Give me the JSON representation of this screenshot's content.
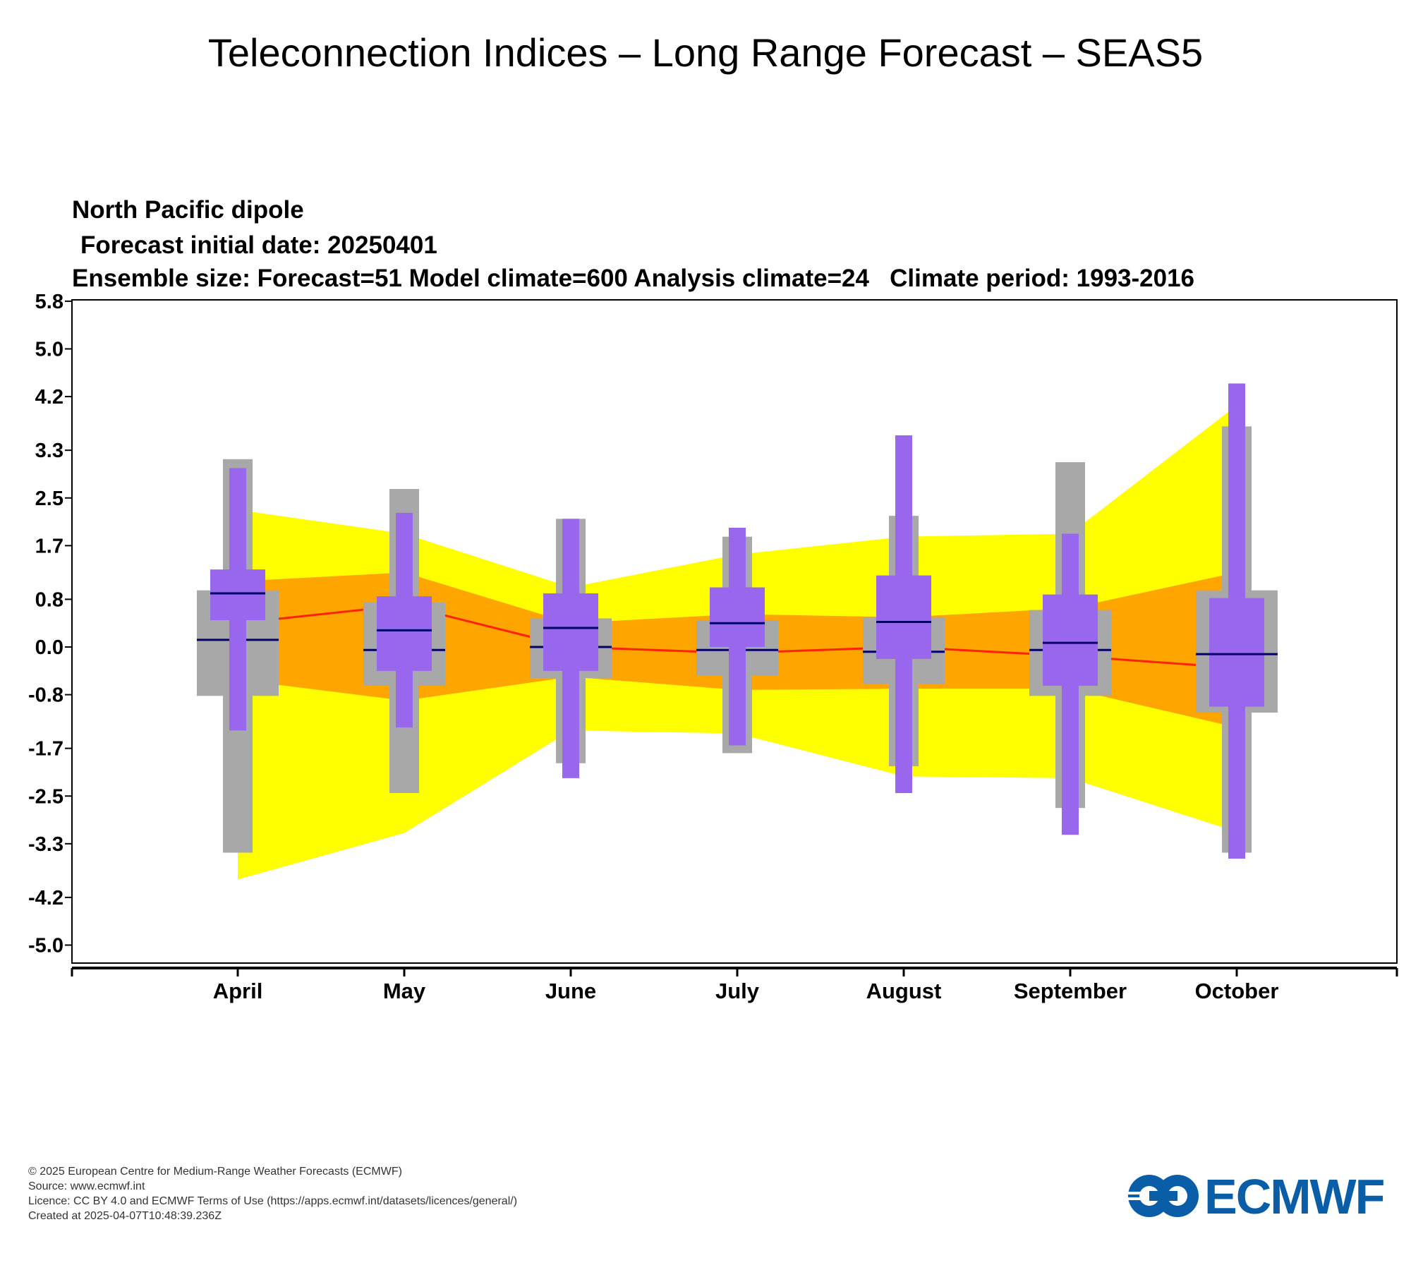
{
  "page": {
    "title": "Teleconnection Indices – Long Range Forecast – SEAS5",
    "footer": {
      "copyright": "© 2025 European Centre for Medium-Range Weather Forecasts (ECMWF)",
      "source": "Source: www.ecmwf.int",
      "licence": "Licence: CC BY 4.0 and ECMWF Terms of Use (https://apps.ecmwf.int/datasets/licences/general/)",
      "created": "Created at 2025-04-07T10:48:39.236Z"
    },
    "logo_text": "ECMWF"
  },
  "chart_data": {
    "type": "box",
    "title": "North Pacific dipole",
    "subtitle_1": "Forecast initial date: 20250401",
    "subtitle_2": "Ensemble size: Forecast=51 Model climate=600 Analysis climate=24   Climate period: 1993-2016",
    "categories": [
      "April",
      "May",
      "June",
      "July",
      "August",
      "September",
      "October"
    ],
    "yticks": [
      "5.8",
      "5.0",
      "4.2",
      "3.3",
      "2.5",
      "1.7",
      "0.8",
      "0.0",
      "-0.8",
      "-1.7",
      "-2.5",
      "-3.3",
      "-4.2",
      "-5.0"
    ],
    "ylim": [
      -5.5,
      6.0
    ],
    "grid": false,
    "colors": {
      "climate_outer_band": "#ffff00",
      "climate_inner_band": "#ffa500",
      "model_climate_box": "#a8a8a8",
      "forecast_box": "#9966ee",
      "median_line": "#000066",
      "analysis_median_line": "#ff2200"
    },
    "analysis_climate": {
      "name": "Analysis climate",
      "p_lo": [
        -3.9,
        -3.12,
        -1.4,
        -1.45,
        -2.17,
        -2.2,
        -3.1
      ],
      "p_lo_inner": [
        -0.55,
        -0.9,
        -0.5,
        -0.72,
        -0.7,
        -0.7,
        -1.35
      ],
      "median": [
        0.4,
        0.7,
        0.0,
        -0.1,
        0.0,
        -0.15,
        -0.35
      ],
      "p_hi_inner": [
        1.1,
        1.25,
        0.4,
        0.55,
        0.5,
        0.65,
        1.25
      ],
      "p_hi": [
        2.3,
        1.9,
        1.0,
        1.55,
        1.85,
        1.9,
        4.05
      ]
    },
    "model_climate": {
      "name": "Model climate",
      "whisker_lo": [
        -3.45,
        -2.45,
        -1.95,
        -1.78,
        -2.0,
        -2.7,
        -3.45
      ],
      "box_lo": [
        -0.82,
        -0.65,
        -0.52,
        -0.48,
        -0.62,
        -0.82,
        -1.1
      ],
      "median": [
        0.12,
        -0.05,
        0.0,
        -0.05,
        -0.08,
        -0.05,
        -0.12
      ],
      "box_hi": [
        0.95,
        0.75,
        0.48,
        0.45,
        0.5,
        0.62,
        0.95
      ],
      "whisker_hi": [
        3.15,
        2.65,
        2.15,
        1.85,
        2.2,
        3.1,
        3.7
      ]
    },
    "forecast": {
      "name": "Forecast",
      "whisker_lo": [
        -1.4,
        -1.35,
        -2.2,
        -1.65,
        -2.45,
        -3.15,
        -3.55
      ],
      "box_lo": [
        0.45,
        -0.4,
        -0.4,
        0.0,
        -0.2,
        -0.65,
        -1.0
      ],
      "median": [
        0.9,
        0.28,
        0.32,
        0.4,
        0.42,
        0.07,
        -0.12
      ],
      "box_hi": [
        1.3,
        0.85,
        0.9,
        1.0,
        1.2,
        0.88,
        0.82
      ],
      "whisker_hi": [
        3.0,
        2.25,
        2.15,
        2.0,
        3.55,
        1.9,
        4.42
      ]
    }
  }
}
